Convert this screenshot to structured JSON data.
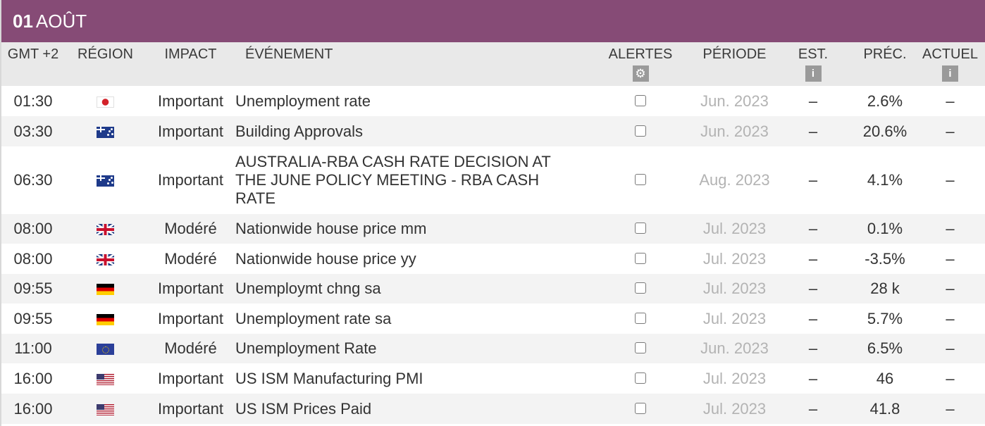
{
  "date": {
    "day": "01",
    "month": "AOÛT"
  },
  "headers": {
    "time": "GMT +2",
    "region": "RÉGION",
    "impact": "IMPACT",
    "event": "ÉVÉNEMENT",
    "alerts": "ALERTES",
    "period": "PÉRIODE",
    "est": "EST.",
    "prec": "PRÉC.",
    "actual": "ACTUEL",
    "info_glyph": "i"
  },
  "rows": [
    {
      "time": "01:30",
      "flag": "jp",
      "impact": "Important",
      "event": "Unemployment rate",
      "period": "Jun. 2023",
      "est": "–",
      "prec": "2.6%",
      "actual": "–"
    },
    {
      "time": "03:30",
      "flag": "au",
      "impact": "Important",
      "event": "Building Approvals",
      "period": "Jun. 2023",
      "est": "–",
      "prec": "20.6%",
      "actual": "–"
    },
    {
      "time": "06:30",
      "flag": "au",
      "impact": "Important",
      "event": "AUSTRALIA-RBA CASH RATE DECISION AT THE JUNE POLICY MEETING - RBA CASH RATE",
      "period": "Aug. 2023",
      "est": "–",
      "prec": "4.1%",
      "actual": "–"
    },
    {
      "time": "08:00",
      "flag": "gb",
      "impact": "Modéré",
      "event": "Nationwide house price mm",
      "period": "Jul. 2023",
      "est": "–",
      "prec": "0.1%",
      "actual": "–"
    },
    {
      "time": "08:00",
      "flag": "gb",
      "impact": "Modéré",
      "event": "Nationwide house price yy",
      "period": "Jul. 2023",
      "est": "–",
      "prec": "-3.5%",
      "actual": "–"
    },
    {
      "time": "09:55",
      "flag": "de",
      "impact": "Important",
      "event": "Unemploymt chng sa",
      "period": "Jul. 2023",
      "est": "–",
      "prec": "28 k",
      "actual": "–"
    },
    {
      "time": "09:55",
      "flag": "de",
      "impact": "Important",
      "event": "Unemployment rate sa",
      "period": "Jul. 2023",
      "est": "–",
      "prec": "5.7%",
      "actual": "–"
    },
    {
      "time": "11:00",
      "flag": "eu",
      "impact": "Modéré",
      "event": "Unemployment Rate",
      "period": "Jun. 2023",
      "est": "–",
      "prec": "6.5%",
      "actual": "–"
    },
    {
      "time": "16:00",
      "flag": "us",
      "impact": "Important",
      "event": "US ISM Manufacturing PMI",
      "period": "Jul. 2023",
      "est": "–",
      "prec": "46",
      "actual": "–"
    },
    {
      "time": "16:00",
      "flag": "us",
      "impact": "Important",
      "event": "US ISM Prices Paid",
      "period": "Jul. 2023",
      "est": "–",
      "prec": "41.8",
      "actual": "–"
    }
  ],
  "colors": {
    "accent": "#864b76",
    "header_bg": "#e9e9e9",
    "row_alt": "#f3f3f3",
    "period_text": "#b3b3b3",
    "icon_bg": "#9a9a9a"
  },
  "icons": {
    "alerts": "gear-icon",
    "est": "info-icon",
    "actual": "info-icon"
  }
}
